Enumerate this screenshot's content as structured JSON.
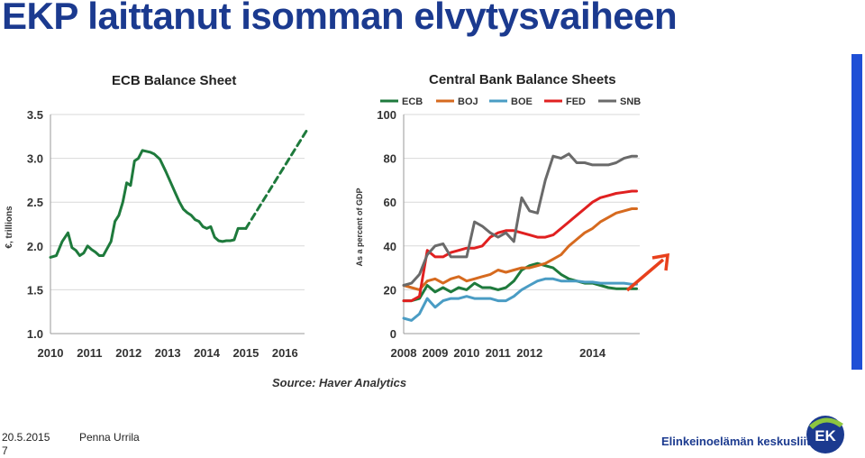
{
  "slide": {
    "title": "EKP laittanut isomman elvytysvaiheen",
    "source": "Source: Haver Analytics",
    "date": "20.5.2015",
    "author": "Penna Urrila",
    "page": "7",
    "organization": "Elinkeinoelämän keskusliitto",
    "logo_text": "EK",
    "accent_color": "#1f4fd6",
    "title_color": "#1b3a8f",
    "arrow_color": "#e8401c"
  },
  "chart_data": [
    {
      "type": "line",
      "title": "ECB Balance Sheet",
      "ylabel": "€, trillions",
      "xlabel": "",
      "ylim": [
        1.0,
        3.5
      ],
      "xlim": [
        2010,
        2016.5
      ],
      "yticks": [
        "1.0",
        "1.5",
        "2.0",
        "2.5",
        "3.0",
        "3.5"
      ],
      "xticks": [
        "2010",
        "2011",
        "2012",
        "2013",
        "2014",
        "2015",
        "2016"
      ],
      "grid": true,
      "series": [
        {
          "color": "#1e7a3c",
          "style": "solid",
          "x": [
            2010.0,
            2010.15,
            2010.3,
            2010.45,
            2010.55,
            2010.65,
            2010.75,
            2010.85,
            2010.95,
            2011.05,
            2011.15,
            2011.25,
            2011.35,
            2011.45,
            2011.55,
            2011.65,
            2011.75,
            2011.85,
            2011.95,
            2012.05,
            2012.15,
            2012.25,
            2012.35,
            2012.45,
            2012.55,
            2012.65,
            2012.8,
            2012.95,
            2013.1,
            2013.2,
            2013.3,
            2013.4,
            2013.5,
            2013.6,
            2013.7,
            2013.8,
            2013.9,
            2014.0,
            2014.1,
            2014.2,
            2014.3,
            2014.4,
            2014.5,
            2014.6,
            2014.7,
            2014.8,
            2014.9,
            2015.0
          ],
          "y": [
            1.87,
            1.89,
            2.05,
            2.15,
            1.98,
            1.95,
            1.89,
            1.92,
            2.0,
            1.96,
            1.93,
            1.89,
            1.89,
            1.97,
            2.05,
            2.28,
            2.35,
            2.5,
            2.72,
            2.69,
            2.97,
            3.0,
            3.09,
            3.08,
            3.07,
            3.05,
            2.99,
            2.85,
            2.7,
            2.6,
            2.5,
            2.42,
            2.38,
            2.35,
            2.3,
            2.28,
            2.22,
            2.2,
            2.22,
            2.1,
            2.06,
            2.05,
            2.06,
            2.06,
            2.07,
            2.2,
            2.2,
            2.2
          ]
        },
        {
          "color": "#1e7a3c",
          "style": "dashed",
          "x": [
            2015.0,
            2016.6
          ],
          "y": [
            2.2,
            3.35
          ]
        }
      ]
    },
    {
      "type": "line",
      "title": "Central Bank Balance Sheets",
      "ylabel": "As a percent of GDP",
      "xlabel": "",
      "ylim": [
        0,
        100
      ],
      "xlim": [
        2008,
        2015.5
      ],
      "yticks": [
        "0",
        "20",
        "40",
        "60",
        "80",
        "100"
      ],
      "xticks": [
        "2008",
        "2009",
        "2010",
        "2011",
        "2012",
        "2014"
      ],
      "grid": true,
      "legend": "top",
      "series": [
        {
          "name": "ECB",
          "color": "#1e7a3c",
          "x": [
            2008.0,
            2008.25,
            2008.5,
            2008.75,
            2009.0,
            2009.25,
            2009.5,
            2009.75,
            2010.0,
            2010.25,
            2010.5,
            2010.75,
            2011.0,
            2011.25,
            2011.5,
            2011.75,
            2012.0,
            2012.25,
            2012.5,
            2012.75,
            2013.0,
            2013.25,
            2013.5,
            2013.75,
            2014.0,
            2014.25,
            2014.5,
            2014.75,
            2015.0,
            2015.25,
            2015.4
          ],
          "y": [
            15,
            15,
            16,
            22,
            19,
            21,
            19,
            21,
            20,
            23,
            21,
            21,
            20,
            21,
            24,
            29,
            31,
            32,
            31,
            30,
            27,
            25,
            24,
            23,
            23,
            22,
            21,
            20.5,
            20.5,
            20.5,
            20.5
          ]
        },
        {
          "name": "BOJ",
          "color": "#d66a1f",
          "x": [
            2008.0,
            2008.25,
            2008.5,
            2008.75,
            2009.0,
            2009.25,
            2009.5,
            2009.75,
            2010.0,
            2010.25,
            2010.5,
            2010.75,
            2011.0,
            2011.25,
            2011.5,
            2011.75,
            2012.0,
            2012.25,
            2012.5,
            2012.75,
            2013.0,
            2013.25,
            2013.5,
            2013.75,
            2014.0,
            2014.25,
            2014.5,
            2014.75,
            2015.0,
            2015.25,
            2015.4
          ],
          "y": [
            22,
            21,
            20,
            24,
            25,
            23,
            25,
            26,
            24,
            25,
            26,
            27,
            29,
            28,
            29,
            30,
            30,
            31,
            32,
            34,
            36,
            40,
            43,
            46,
            48,
            51,
            53,
            55,
            56,
            57,
            57
          ]
        },
        {
          "name": "BOE",
          "color": "#4a9cc4",
          "x": [
            2008.0,
            2008.25,
            2008.5,
            2008.75,
            2009.0,
            2009.25,
            2009.5,
            2009.75,
            2010.0,
            2010.25,
            2010.5,
            2010.75,
            2011.0,
            2011.25,
            2011.5,
            2011.75,
            2012.0,
            2012.25,
            2012.5,
            2012.75,
            2013.0,
            2013.25,
            2013.5,
            2013.75,
            2014.0,
            2014.25,
            2014.5,
            2014.75,
            2015.0,
            2015.25,
            2015.4
          ],
          "y": [
            7,
            6,
            9,
            16,
            12,
            15,
            16,
            16,
            17,
            16,
            16,
            16,
            15,
            15,
            17,
            20,
            22,
            24,
            25,
            25,
            24,
            24,
            24,
            23.5,
            23.5,
            23,
            23,
            23,
            23,
            22.5,
            22.5
          ]
        },
        {
          "name": "FED",
          "color": "#e02020",
          "x": [
            2008.0,
            2008.25,
            2008.5,
            2008.75,
            2009.0,
            2009.25,
            2009.5,
            2009.75,
            2010.0,
            2010.25,
            2010.5,
            2010.75,
            2011.0,
            2011.25,
            2011.5,
            2011.75,
            2012.0,
            2012.25,
            2012.5,
            2012.75,
            2013.0,
            2013.25,
            2013.5,
            2013.75,
            2014.0,
            2014.25,
            2014.5,
            2014.75,
            2015.0,
            2015.25,
            2015.4
          ],
          "y": [
            15,
            15,
            17,
            38,
            35,
            35,
            37,
            38,
            39,
            39,
            40,
            44,
            46,
            47,
            47,
            46,
            45,
            44,
            44,
            45,
            48,
            51,
            54,
            57,
            60,
            62,
            63,
            64,
            64.5,
            65,
            65
          ]
        },
        {
          "name": "SNB",
          "color": "#6a6a6a",
          "x": [
            2008.0,
            2008.25,
            2008.5,
            2008.75,
            2009.0,
            2009.25,
            2009.5,
            2009.75,
            2010.0,
            2010.25,
            2010.5,
            2010.75,
            2011.0,
            2011.25,
            2011.5,
            2011.75,
            2012.0,
            2012.25,
            2012.5,
            2012.75,
            2013.0,
            2013.25,
            2013.5,
            2013.75,
            2014.0,
            2014.25,
            2014.5,
            2014.75,
            2015.0,
            2015.25,
            2015.4
          ],
          "y": [
            22,
            23,
            27,
            36,
            40,
            41,
            35,
            35,
            35,
            51,
            49,
            46,
            44,
            46,
            42,
            62,
            56,
            55,
            70,
            81,
            80,
            82,
            78,
            78,
            77,
            77,
            77,
            78,
            80,
            81,
            81
          ]
        }
      ]
    }
  ]
}
